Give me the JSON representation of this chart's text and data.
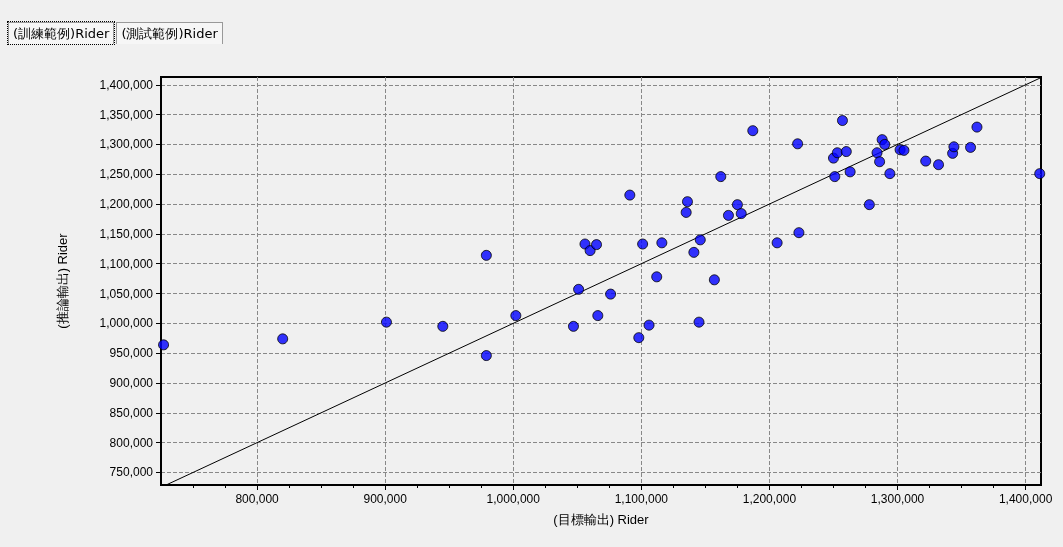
{
  "chart_data": {
    "type": "scatter",
    "xlabel": "(目標輸出) Rider",
    "ylabel": "(推論輸出) Rider",
    "annotations": [
      "(訓練範例)Rider",
      "(測試範例)Rider"
    ],
    "xlim": [
      725000,
      1412000
    ],
    "ylim": [
      729000,
      1413000
    ],
    "xticks": [
      {
        "value": 800000,
        "label": "800,000"
      },
      {
        "value": 900000,
        "label": "900,000"
      },
      {
        "value": 1000000,
        "label": "1,000,000"
      },
      {
        "value": 1100000,
        "label": "1,100,000"
      },
      {
        "value": 1200000,
        "label": "1,200,000"
      },
      {
        "value": 1300000,
        "label": "1,300,000"
      },
      {
        "value": 1400000,
        "label": "1,400,000"
      }
    ],
    "yticks": [
      {
        "value": 750000,
        "label": "750,000"
      },
      {
        "value": 800000,
        "label": "800,000"
      },
      {
        "value": 850000,
        "label": "850,000"
      },
      {
        "value": 900000,
        "label": "900,000"
      },
      {
        "value": 950000,
        "label": "950,000"
      },
      {
        "value": 1000000,
        "label": "1,000,000"
      },
      {
        "value": 1050000,
        "label": "1,050,000"
      },
      {
        "value": 1100000,
        "label": "1,100,000"
      },
      {
        "value": 1150000,
        "label": "1,150,000"
      },
      {
        "value": 1200000,
        "label": "1,200,000"
      },
      {
        "value": 1250000,
        "label": "1,250,000"
      },
      {
        "value": 1300000,
        "label": "1,300,000"
      },
      {
        "value": 1350000,
        "label": "1,350,000"
      },
      {
        "value": 1400000,
        "label": "1,400,000"
      }
    ],
    "grid": true,
    "marker": "circle",
    "series": [
      {
        "color": "#0000ff",
        "x": [
          727000,
          820000,
          901000,
          945000,
          979000,
          979000,
          1002000,
          1047000,
          1051000,
          1056000,
          1060000,
          1065000,
          1066000,
          1076000,
          1091000,
          1101000,
          1098000,
          1106000,
          1116000,
          1112000,
          1136000,
          1135000,
          1146000,
          1141000,
          1145000,
          1157000,
          1162000,
          1168000,
          1175000,
          1178000,
          1187000,
          1206000,
          1223000,
          1222000,
          1251000,
          1250000,
          1253000,
          1260000,
          1257000,
          1263000,
          1278000,
          1284000,
          1286000,
          1288000,
          1290000,
          1294000,
          1302000,
          1305000,
          1322000,
          1332000,
          1343000,
          1344000,
          1357000,
          1362000,
          1411000
        ],
        "values": [
          964000,
          974000,
          1002000,
          995000,
          1114000,
          946000,
          1013000,
          995000,
          1057000,
          1133000,
          1122000,
          1132000,
          1013000,
          1049000,
          1215000,
          1133000,
          976000,
          997000,
          1135000,
          1078000,
          1204000,
          1186000,
          1140000,
          1119000,
          1002000,
          1073000,
          1246000,
          1181000,
          1199000,
          1184000,
          1323000,
          1135000,
          1152000,
          1301000,
          1246000,
          1277000,
          1286000,
          1288000,
          1340000,
          1254000,
          1199000,
          1286000,
          1271000,
          1308000,
          1300000,
          1251000,
          1291000,
          1290000,
          1272000,
          1266000,
          1285000,
          1296000,
          1295000,
          1329000,
          1251000
        ]
      },
      {
        "type": "line",
        "color": "#000000",
        "marker": "none",
        "x": [
          729000,
          1412000
        ],
        "values": [
          729000,
          1412000
        ]
      }
    ]
  }
}
